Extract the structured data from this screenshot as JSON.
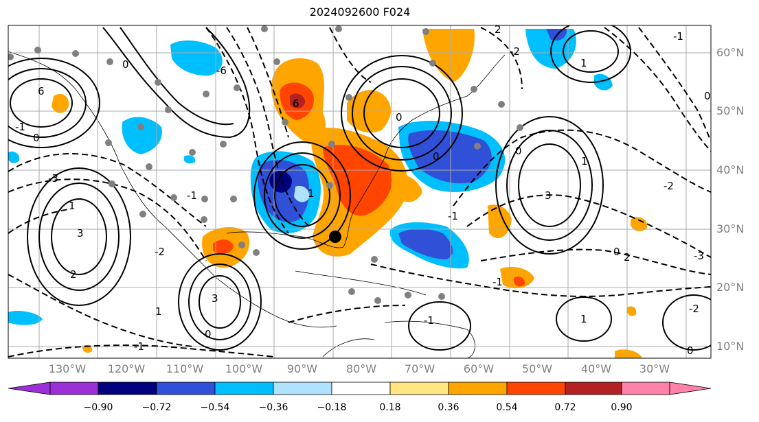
{
  "title": "2024092600 F024",
  "lat_labels": [
    "60°N",
    "50°N",
    "40°N",
    "30°N",
    "20°N",
    "10°N"
  ],
  "lon_labels": [
    "130°W",
    "120°W",
    "110°W",
    "100°W",
    "90°W",
    "80°W",
    "70°W",
    "60°W",
    "50°W",
    "40°W",
    "30°W"
  ],
  "colorbar": {
    "colors": [
      "#9b30d8",
      "#00007f",
      "#3050d8",
      "#00bfff",
      "#afe2ff",
      "#ffffff",
      "#ffe680",
      "#ffa500",
      "#ff4500",
      "#b22222",
      "#ff82ab"
    ],
    "tick_labels": [
      "−0.90",
      "−0.72",
      "−0.54",
      "−0.36",
      "−0.18",
      "0.18",
      "0.36",
      "0.54",
      "0.72",
      "0.90"
    ]
  },
  "contour_labels": [
    "6",
    "6",
    "0",
    "-1",
    "0",
    "1",
    "-3",
    "3",
    "2",
    "-2",
    "1",
    "3",
    "-1",
    "-6",
    "1",
    "0",
    "-1",
    "0",
    "2",
    "-2",
    "-1",
    "1",
    "3",
    "0",
    "1",
    "0",
    "-2",
    "-1",
    "0",
    "-3",
    "1",
    "-2",
    "0",
    "2",
    "0",
    "-1",
    "-1"
  ],
  "hurricane_marker": "storm-center"
}
